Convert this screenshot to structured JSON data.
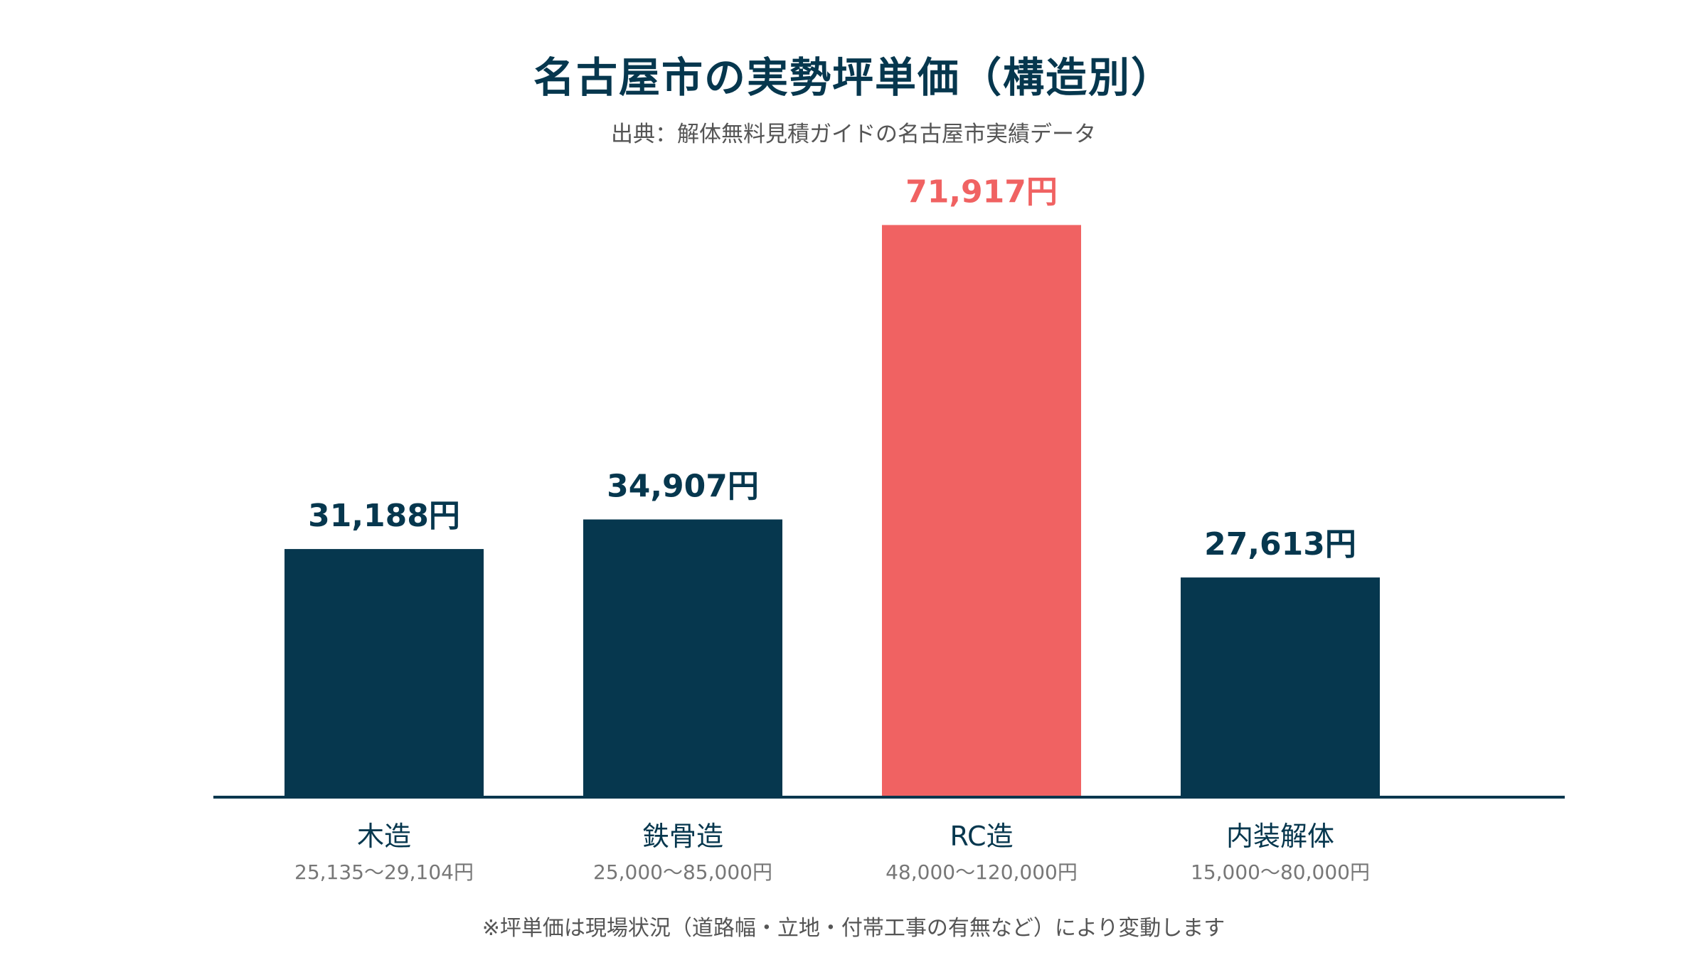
{
  "title": "名古屋市の実勢坪単価（構造別）",
  "subtitle": "出典：解体無料見積ガイドの名古屋市実績データ",
  "footnote": "※坪単価は現場状況（道路幅・立地・付帯工事の有無など）により変動します",
  "colors": {
    "default_bar": "#06374e",
    "highlight_bar": "#f06262",
    "title": "#06374e",
    "muted_text": "#555555",
    "baseline": "#06374e"
  },
  "chart_data": {
    "type": "bar",
    "title": "名古屋市の実勢坪単価（構造別）",
    "subtitle": "出典：解体無料見積ガイドの名古屋市実績データ",
    "xlabel": "",
    "ylabel": "",
    "ylim": [
      0,
      80000
    ],
    "grid": false,
    "legend": "none",
    "categories": [
      "木造",
      "鉄骨造",
      "RC造",
      "内装解体"
    ],
    "values": [
      31188,
      34907,
      71917,
      27613
    ],
    "value_labels": [
      "31,188円",
      "34,907円",
      "71,917円",
      "27,613円"
    ],
    "ranges": [
      "25,135〜29,104円",
      "25,000〜85,000円",
      "48,000〜120,000円",
      "15,000〜80,000円"
    ],
    "highlight_index": 2
  }
}
